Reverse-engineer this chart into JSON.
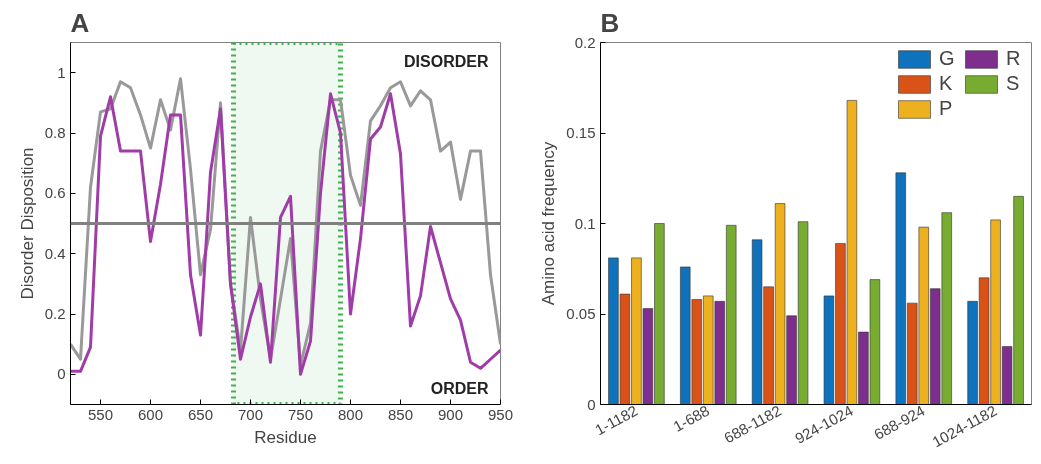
{
  "chart_data": [
    {
      "type": "line",
      "title": "A",
      "xlabel": "Residue",
      "ylabel": "Disorder Disposition",
      "x": [
        520,
        530,
        540,
        550,
        560,
        570,
        580,
        590,
        600,
        610,
        620,
        630,
        640,
        650,
        660,
        670,
        680,
        690,
        700,
        710,
        720,
        730,
        740,
        750,
        760,
        770,
        780,
        790,
        800,
        810,
        820,
        830,
        840,
        850,
        860,
        870,
        880,
        890,
        900,
        910,
        920,
        930,
        940,
        950
      ],
      "series": [
        {
          "color": "#999999",
          "values": [
            0.1,
            0.05,
            0.62,
            0.87,
            0.88,
            0.97,
            0.95,
            0.86,
            0.75,
            0.91,
            0.81,
            0.98,
            0.68,
            0.33,
            0.48,
            0.9,
            0.3,
            0.08,
            0.52,
            0.25,
            0.05,
            0.25,
            0.45,
            0.03,
            0.17,
            0.74,
            0.91,
            0.91,
            0.66,
            0.56,
            0.84,
            0.89,
            0.95,
            0.97,
            0.89,
            0.94,
            0.91,
            0.74,
            0.77,
            0.58,
            0.74,
            0.74,
            0.33,
            0.1
          ]
        },
        {
          "color": "#a03ca8",
          "values": [
            0.01,
            0.01,
            0.09,
            0.79,
            0.92,
            0.74,
            0.74,
            0.74,
            0.44,
            0.63,
            0.86,
            0.86,
            0.33,
            0.13,
            0.67,
            0.88,
            0.3,
            0.05,
            0.19,
            0.3,
            0.04,
            0.52,
            0.59,
            0.0,
            0.11,
            0.6,
            0.93,
            0.8,
            0.2,
            0.45,
            0.78,
            0.82,
            0.93,
            0.73,
            0.16,
            0.26,
            0.49,
            0.37,
            0.25,
            0.18,
            0.04,
            0.02,
            0.05,
            0.08
          ]
        }
      ],
      "xlim": [
        520,
        950
      ],
      "xticks": [
        550,
        600,
        650,
        700,
        750,
        800,
        850,
        900,
        950
      ],
      "ylim": [
        -0.1,
        1.1
      ],
      "yticks": [
        0,
        0.2,
        0.4,
        0.6,
        0.8,
        1
      ],
      "ref_lines": [
        {
          "axis": "y",
          "value": 0.5,
          "color": "#808080"
        }
      ],
      "bands": [
        {
          "axis": "x",
          "from": 683,
          "to": 790,
          "color": "#3cb44a"
        }
      ],
      "annotations": [
        "DISORDER",
        "ORDER"
      ],
      "grid": false,
      "legend": false,
      "line_style": "solid",
      "marker": "none"
    },
    {
      "type": "bar",
      "title": "B",
      "ylabel": "Amino acid frequency",
      "categories": [
        "1-1182",
        "1-688",
        "688-1182",
        "924-1024",
        "688-924",
        "1024-1182"
      ],
      "series": [
        {
          "name": "G",
          "color": "#0f72bd",
          "values": [
            0.081,
            0.076,
            0.091,
            0.06,
            0.128,
            0.057
          ]
        },
        {
          "name": "K",
          "color": "#d95319",
          "values": [
            0.061,
            0.058,
            0.065,
            0.089,
            0.056,
            0.07
          ]
        },
        {
          "name": "P",
          "color": "#edb120",
          "values": [
            0.081,
            0.06,
            0.111,
            0.168,
            0.098,
            0.102
          ]
        },
        {
          "name": "R",
          "color": "#7e2f8e",
          "values": [
            0.053,
            0.057,
            0.049,
            0.04,
            0.064,
            0.032
          ]
        },
        {
          "name": "S",
          "color": "#77ac30",
          "values": [
            0.1,
            0.099,
            0.101,
            0.069,
            0.106,
            0.115
          ]
        }
      ],
      "ylim": [
        0,
        0.2
      ],
      "yticks": [
        0,
        0.05,
        0.1,
        0.15,
        0.2
      ],
      "grid": false,
      "legend": "top right"
    }
  ]
}
